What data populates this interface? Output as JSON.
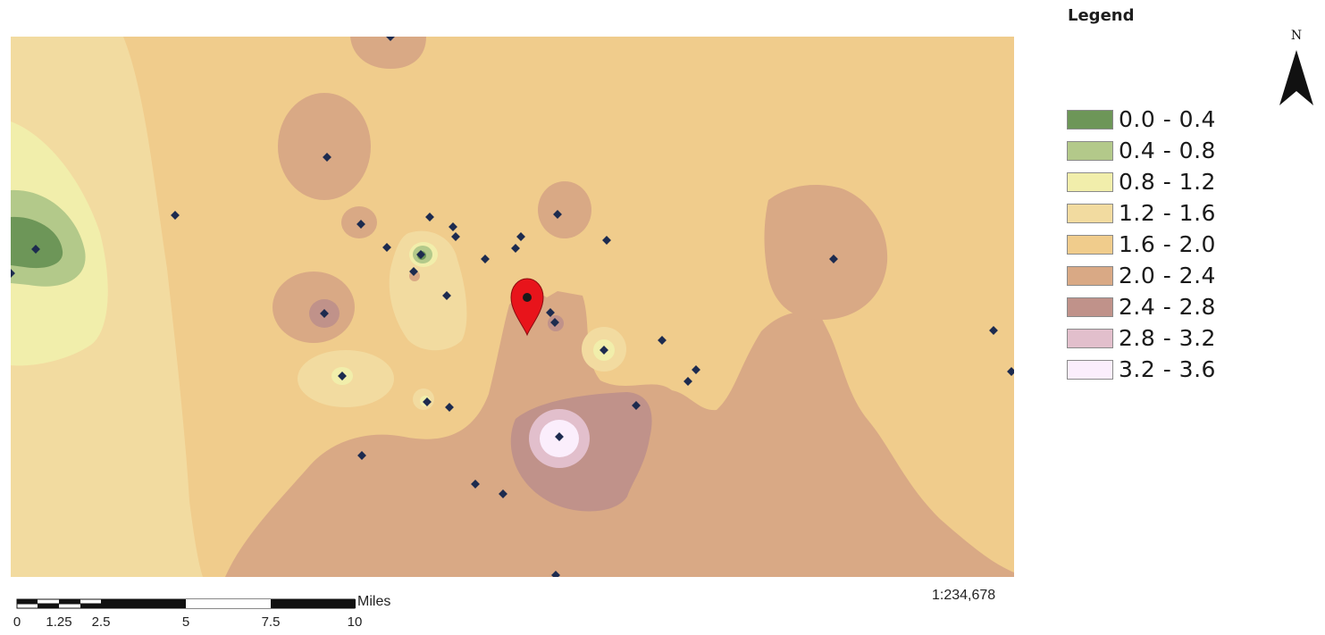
{
  "legend": {
    "title": "Legend",
    "classes": [
      {
        "label": "0.0 - 0.4",
        "color": "#6d9658"
      },
      {
        "label": "0.4 - 0.8",
        "color": "#b3c98a"
      },
      {
        "label": "0.8 - 1.2",
        "color": "#f1eeab"
      },
      {
        "label": "1.2 - 1.6",
        "color": "#f2dba0"
      },
      {
        "label": "1.6 - 2.0",
        "color": "#f0cc8c"
      },
      {
        "label": "2.0 - 2.4",
        "color": "#d9a985"
      },
      {
        "label": "2.4 - 2.8",
        "color": "#c0928a"
      },
      {
        "label": "2.8 - 3.2",
        "color": "#e2bfcc"
      },
      {
        "label": "3.2 - 3.6",
        "color": "#fbeefc"
      }
    ]
  },
  "north_arrow": {
    "letter": "N"
  },
  "scale_bar": {
    "unit": "Miles",
    "ticks": [
      "0",
      "1.25",
      "2.5",
      "5",
      "7.5",
      "10"
    ],
    "ratio": "1:234,678"
  },
  "map": {
    "marker_icon": "map-pin-icon",
    "marker_color": "#e8141b",
    "sample_point_color": "#1d2b4f"
  }
}
